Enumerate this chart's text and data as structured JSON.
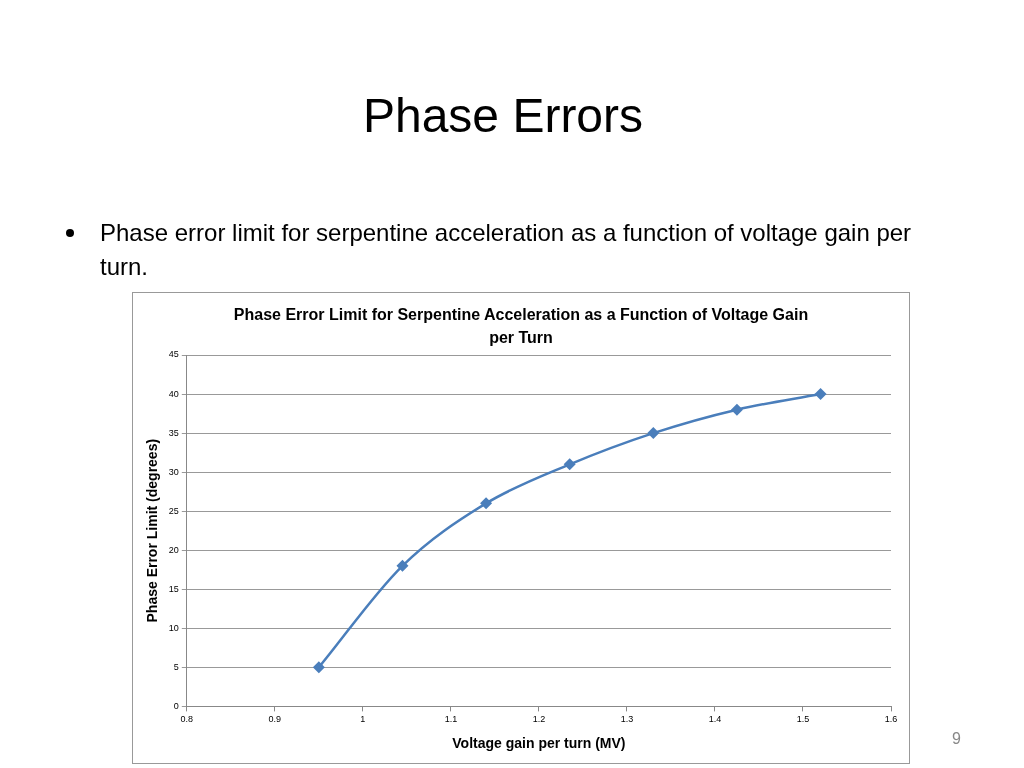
{
  "chart_data": {
    "type": "line",
    "title": "Phase Error Limit for Serpentine Acceleration as a Function of Voltage Gain per Turn",
    "xlabel": "Voltage gain per turn (MV)",
    "ylabel": "Phase Error Limit (degrees)",
    "annotations": [
      "Phase Errors",
      "Phase error limit for serpentine acceleration as a function of voltage gain per turn.",
      "9"
    ],
    "x": [
      0.95,
      1.045,
      1.14,
      1.235,
      1.33,
      1.425,
      1.52
    ],
    "series": [
      {
        "color": "#4a7ebb",
        "values": [
          5,
          18,
          26,
          31,
          35,
          38,
          40
        ]
      }
    ],
    "xlim": [
      0.8,
      1.6
    ],
    "xticks": [
      0.8,
      0.9,
      1,
      1.1,
      1.2,
      1.3,
      1.4,
      1.5,
      1.6
    ],
    "ylim": [
      0,
      45
    ],
    "yticks": [
      0,
      5,
      10,
      15,
      20,
      25,
      30,
      35,
      40,
      45
    ],
    "grid": "y",
    "legend": false,
    "marker": "diamond",
    "line_style": "solid"
  }
}
